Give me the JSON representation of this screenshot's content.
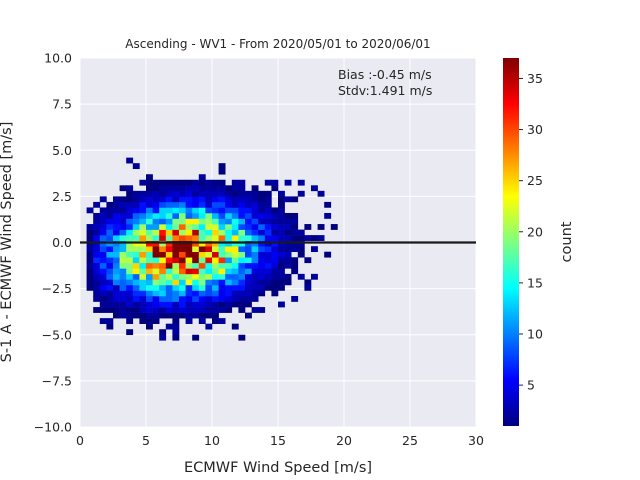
{
  "chart_data": {
    "type": "heatmap",
    "title": "Ascending - WV1 - From 2020/05/01 to 2020/06/01",
    "xlabel": "ECMWF Wind Speed [m/s]",
    "ylabel": "S-1 A - ECMWF Wind Speed [m/s]",
    "xlim": [
      0,
      30
    ],
    "ylim": [
      -10,
      10
    ],
    "x_ticks": [
      "0",
      "5",
      "10",
      "15",
      "20",
      "25",
      "30"
    ],
    "y_ticks": [
      "−10.0",
      "−7.5",
      "−5.0",
      "−2.5",
      "0.0",
      "2.5",
      "5.0",
      "7.5",
      "10.0"
    ],
    "grid": true,
    "annotations": {
      "bias": "Bias :-0.45 m/s",
      "stdv": "Stdv:1.491 m/s"
    },
    "reference_line": {
      "y": 0,
      "color": "#1a1a1a"
    },
    "colorbar": {
      "label": "count",
      "range": [
        1,
        37
      ],
      "ticks": [
        "5",
        "10",
        "15",
        "20",
        "25",
        "30",
        "35"
      ],
      "colormap": "jet"
    },
    "density_model": {
      "peak_count": 36,
      "center_x": 7.5,
      "center_y": -0.6,
      "bias": -0.45,
      "stdv": 1.491
    },
    "colors": {
      "axes_background": "#eaeaf2",
      "grid": "#ffffff"
    }
  }
}
